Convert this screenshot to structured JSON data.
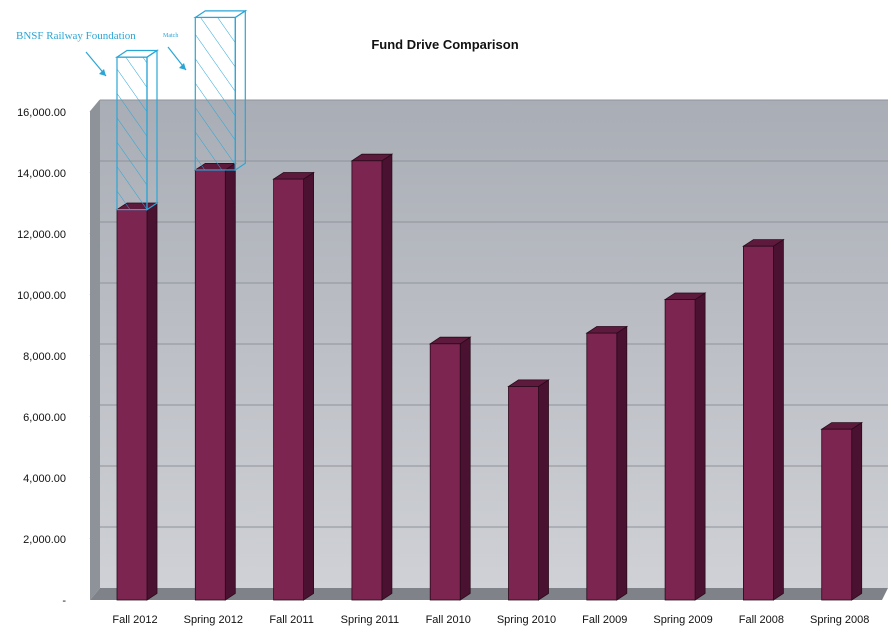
{
  "chart_data": {
    "type": "bar",
    "title": "Fund Drive Comparison",
    "categories": [
      "Fall 2012",
      "Spring 2012",
      "Fall 2011",
      "Spring 2011",
      "Fall 2010",
      "Spring 2010",
      "Fall 2009",
      "Spring 2009",
      "Fall 2008",
      "Spring 2008"
    ],
    "series": [
      {
        "values": [
          12800,
          14100,
          13800,
          14400,
          8400,
          7000,
          8750,
          9850,
          11600,
          5600
        ]
      }
    ],
    "stacked_overlay": {
      "categories": [
        "Fall 2012",
        "Spring 2012"
      ],
      "values": [
        5000,
        5000
      ],
      "labels": [
        "BNSF Railway Foundation",
        "Match"
      ]
    },
    "ylim": [
      0,
      16000
    ],
    "y_ticks": [
      "-",
      "2,000.00",
      "4,000.00",
      "6,000.00",
      "8,000.00",
      "10,000.00",
      "12,000.00",
      "14,000.00",
      "16,000.00"
    ],
    "grid": true,
    "legend": "none",
    "colors": {
      "bar_front": "#7b2550",
      "bar_side": "#4a1230",
      "bar_top": "#5e1a3d",
      "wall": "#b9bcc4",
      "floor": "#7f8389",
      "overlay": "#2aa6d6"
    }
  }
}
